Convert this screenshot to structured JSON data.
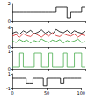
{
  "chart_data": [
    {
      "type": "line",
      "line_style": "step",
      "marker": "none",
      "tick_labels": "y",
      "grid": false,
      "x": [
        0,
        5,
        10,
        15,
        20,
        25,
        30,
        35,
        40,
        45,
        50,
        55,
        60,
        65,
        70,
        75,
        80,
        85,
        90,
        95,
        100
      ],
      "xlim": [
        0,
        100
      ],
      "xticks": [
        0,
        50,
        100
      ],
      "ylim": [
        0,
        2
      ],
      "yticks": [
        0,
        2
      ],
      "series": [
        {
          "color": "#000000",
          "values": [
            1,
            1,
            1,
            1,
            1,
            1,
            1,
            1,
            1,
            1,
            1,
            1,
            1.6,
            1.6,
            1.6,
            0.4,
            1,
            1,
            1,
            1.6,
            1.6
          ]
        }
      ]
    },
    {
      "type": "line",
      "marker": "none",
      "tick_labels": "y",
      "grid": false,
      "x": [
        0,
        5,
        10,
        15,
        20,
        25,
        30,
        35,
        40,
        45,
        50,
        55,
        60,
        65,
        70,
        75,
        80,
        85,
        90,
        95,
        100
      ],
      "xlim": [
        0,
        100
      ],
      "xticks": [
        0,
        50,
        100
      ],
      "ylim": [
        0,
        4
      ],
      "yticks": [
        0,
        4
      ],
      "series": [
        {
          "color": "#000000",
          "values": [
            2.8,
            3.1,
            2.6,
            3.3,
            2.9,
            3.4,
            2.7,
            3.0,
            3.5,
            2.8,
            3.2,
            2.6,
            3.6,
            3.1,
            2.9,
            3.4,
            2.7,
            3.3,
            3.0,
            2.8,
            3.2
          ]
        },
        {
          "color": "#d62728",
          "values": [
            2.2,
            2.5,
            2.0,
            2.7,
            2.3,
            2.1,
            2.8,
            2.4,
            2.0,
            2.6,
            2.2,
            2.9,
            2.3,
            2.1,
            2.7,
            2.4,
            2.2,
            2.6,
            2.0,
            2.5,
            2.3
          ]
        },
        {
          "color": "#2ca02c",
          "values": [
            1.2,
            0.9,
            1.5,
            1.1,
            1.4,
            0.8,
            1.3,
            1.0,
            1.6,
            1.2,
            0.9,
            1.4,
            1.1,
            1.5,
            0.8,
            1.3,
            1.0,
            1.2,
            1.6,
            0.9,
            1.1
          ]
        }
      ]
    },
    {
      "type": "line",
      "line_style": "step",
      "marker": "none",
      "tick_labels": "y",
      "grid": false,
      "x": [
        0,
        5,
        10,
        15,
        20,
        25,
        30,
        35,
        40,
        45,
        50,
        55,
        60,
        65,
        70,
        75,
        80,
        85,
        90,
        95,
        100
      ],
      "xlim": [
        0,
        100
      ],
      "xticks": [
        0,
        50,
        100
      ],
      "ylim": [
        0,
        1
      ],
      "yticks": [
        0,
        1
      ],
      "series": [
        {
          "color": "#4caf50",
          "values": [
            0.1,
            0.1,
            0.9,
            0.1,
            0.1,
            0.1,
            0.9,
            0.9,
            0.1,
            0.1,
            0.9,
            0.1,
            0.1,
            0.1,
            0.9,
            0.1,
            0.1,
            0.9,
            0.9,
            0.1,
            0.1
          ]
        }
      ]
    },
    {
      "type": "line",
      "line_style": "step",
      "marker": "none",
      "tick_labels": true,
      "grid": false,
      "x": [
        0,
        5,
        10,
        15,
        20,
        25,
        30,
        35,
        40,
        45,
        50,
        55,
        60,
        65,
        70,
        75,
        80,
        85,
        90,
        95,
        100
      ],
      "xlim": [
        0,
        100
      ],
      "xticks": [
        0,
        50,
        100
      ],
      "ylim": [
        -1,
        1
      ],
      "yticks": [
        -1,
        1
      ],
      "series": [
        {
          "color": "#000000",
          "values": [
            0.5,
            0.5,
            0.5,
            0.5,
            -0.3,
            -0.3,
            0.5,
            0.5,
            0.5,
            -0.6,
            0.5,
            0.5,
            0.5,
            0.5,
            -0.3,
            0.5,
            0.5,
            0.5,
            0.5,
            0.5,
            0.5
          ]
        }
      ]
    }
  ]
}
